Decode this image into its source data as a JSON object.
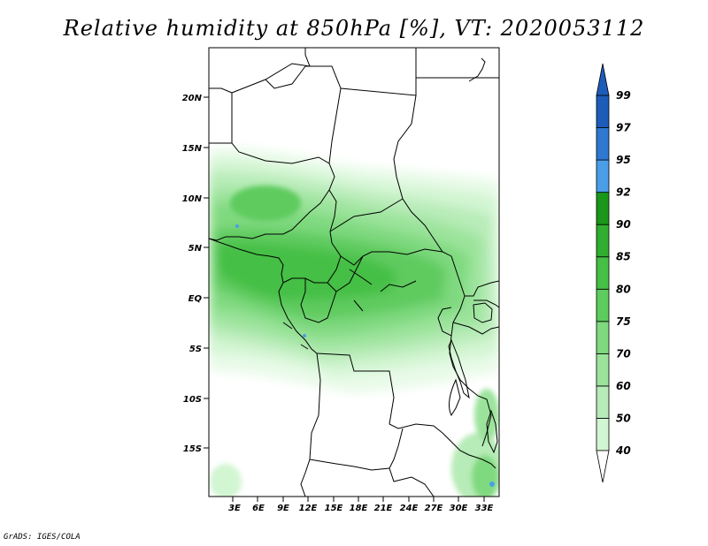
{
  "title": "Relative humidity at 850hPa [%], VT: 2020053112",
  "credit": "GrADS: IGES/COLA",
  "map": {
    "lat_labels": [
      "20N",
      "15N",
      "10N",
      "5N",
      "EQ",
      "5S",
      "10S",
      "15S"
    ],
    "lon_labels": [
      "3E",
      "6E",
      "9E",
      "12E",
      "15E",
      "18E",
      "21E",
      "24E",
      "27E",
      "30E",
      "33E"
    ],
    "region": "Central Africa"
  },
  "colorbar": {
    "levels": [
      "40",
      "50",
      "60",
      "70",
      "75",
      "80",
      "85",
      "90",
      "92",
      "95",
      "97",
      "99"
    ],
    "colors": [
      "#e8fae8",
      "#d2f5d2",
      "#b7ebb7",
      "#9be39b",
      "#7fd97f",
      "#5ecb5e",
      "#45bf45",
      "#2fae2f",
      "#1a961a",
      "#4a9ee8",
      "#2f78d2",
      "#1d5cb8"
    ]
  }
}
